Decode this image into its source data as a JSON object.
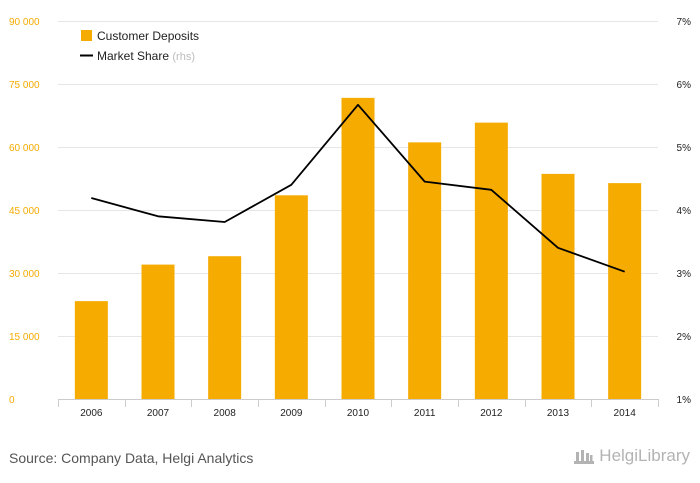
{
  "chart_data": {
    "type": "bar",
    "categories": [
      "2006",
      "2007",
      "2008",
      "2009",
      "2010",
      "2011",
      "2012",
      "2013",
      "2014"
    ],
    "series": [
      {
        "name": "Customer Deposits",
        "type": "bar",
        "axis": "left",
        "color": "#f5ab00",
        "values": [
          23300,
          32000,
          34000,
          48500,
          71700,
          61100,
          65800,
          53600,
          51400
        ]
      },
      {
        "name": "Market Share",
        "name_suffix": "(rhs)",
        "type": "line",
        "axis": "right",
        "color": "#000000",
        "values": [
          4.19,
          3.9,
          3.81,
          4.4,
          5.67,
          4.45,
          4.32,
          3.4,
          3.02
        ]
      }
    ],
    "y_left": {
      "min": 0,
      "max": 90000,
      "ticks": [
        0,
        15000,
        30000,
        45000,
        60000,
        75000,
        90000
      ],
      "tick_labels": [
        "0",
        "15 000",
        "30 000",
        "45 000",
        "60 000",
        "75 000",
        "90 000"
      ],
      "label_color": "#f5ab00"
    },
    "y_right": {
      "min": 1,
      "max": 7,
      "ticks": [
        1,
        2,
        3,
        4,
        5,
        6,
        7
      ],
      "tick_labels": [
        "1%",
        "2%",
        "3%",
        "4%",
        "5%",
        "6%",
        "7%"
      ]
    },
    "grid": true,
    "legend_position": "top-left"
  },
  "footer": {
    "source": "Source: Company Data, Helgi Analytics",
    "brand": "HelgiLibrary"
  }
}
